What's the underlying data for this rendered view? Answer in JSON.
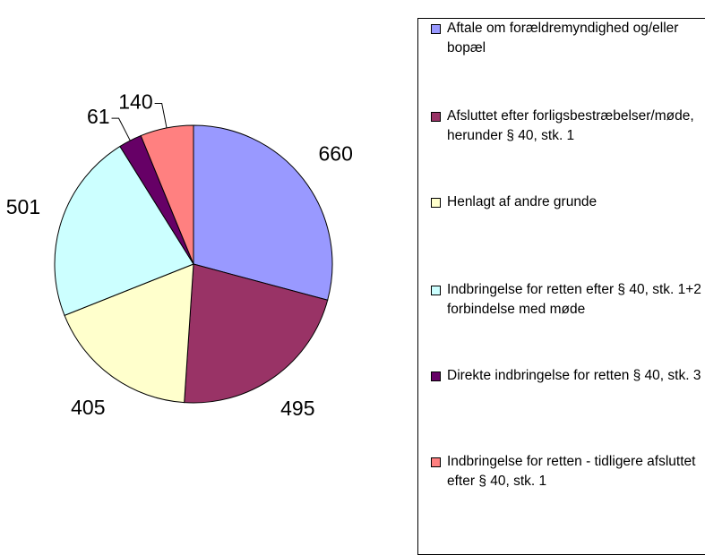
{
  "chart_data": {
    "type": "pie",
    "categories": [
      "Aftale om forældremyndighed og/eller bopæl",
      "Afsluttet efter forligsbestræbelser/møde, herunder § 40, stk. 1",
      "Henlagt af andre grunde",
      "Indbringelse for retten efter § 40, stk. 1+2 i forbindelse med møde",
      "Direkte indbringelse for retten § 40, stk. 3",
      "Indbringelse for retten - tidligere afsluttet efter § 40, stk. 1"
    ],
    "values": [
      660,
      495,
      405,
      501,
      61,
      140
    ],
    "colors": [
      "#9999ff",
      "#993366",
      "#ffffcc",
      "#ccffff",
      "#660066",
      "#ff8080"
    ],
    "legend": "right"
  }
}
